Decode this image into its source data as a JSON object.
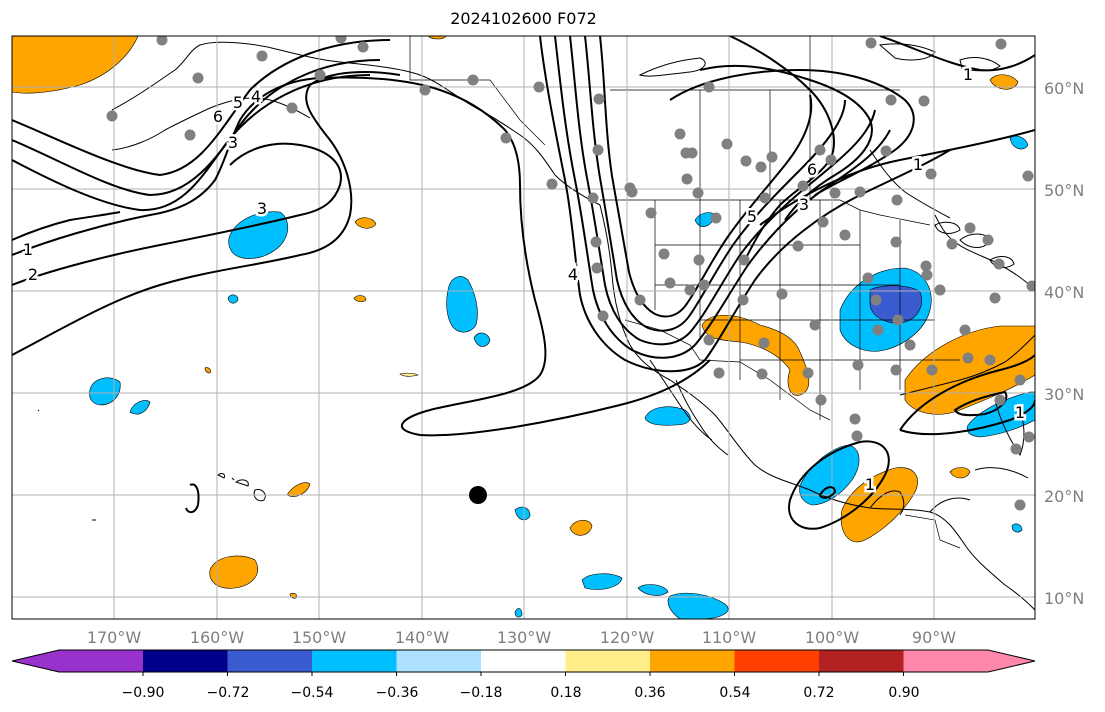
{
  "title": "2024102600 F072",
  "map": {
    "lat_labels": [
      "60°N",
      "50°N",
      "40°N",
      "30°N",
      "20°N",
      "10°N"
    ],
    "lon_labels": [
      "170°W",
      "160°W",
      "150°W",
      "140°W",
      "130°W",
      "120°W",
      "110°W",
      "100°W",
      "90°W"
    ],
    "contour_labels": [
      "2",
      "1",
      "3",
      "6",
      "5",
      "4",
      "3",
      "4",
      "5",
      "6",
      "3",
      "1",
      "1",
      "1",
      "1"
    ],
    "marker": {
      "lat": 20,
      "lon": "135°W"
    },
    "colors": {
      "land_outline": "#000000",
      "station": "#808080",
      "grid": "#b0b0b0"
    }
  },
  "colorbar": {
    "ticks": [
      "−0.90",
      "−0.72",
      "−0.54",
      "−0.36",
      "−0.18",
      "0.18",
      "0.36",
      "0.54",
      "0.72",
      "0.90"
    ],
    "colors": [
      "#9932cc",
      "#00008b",
      "#3b5bd1",
      "#00bfff",
      "#aee1ff",
      "#ffffff",
      "#ffee8a",
      "#ffa500",
      "#ff3f00",
      "#b22222",
      "#ff88aa"
    ]
  }
}
